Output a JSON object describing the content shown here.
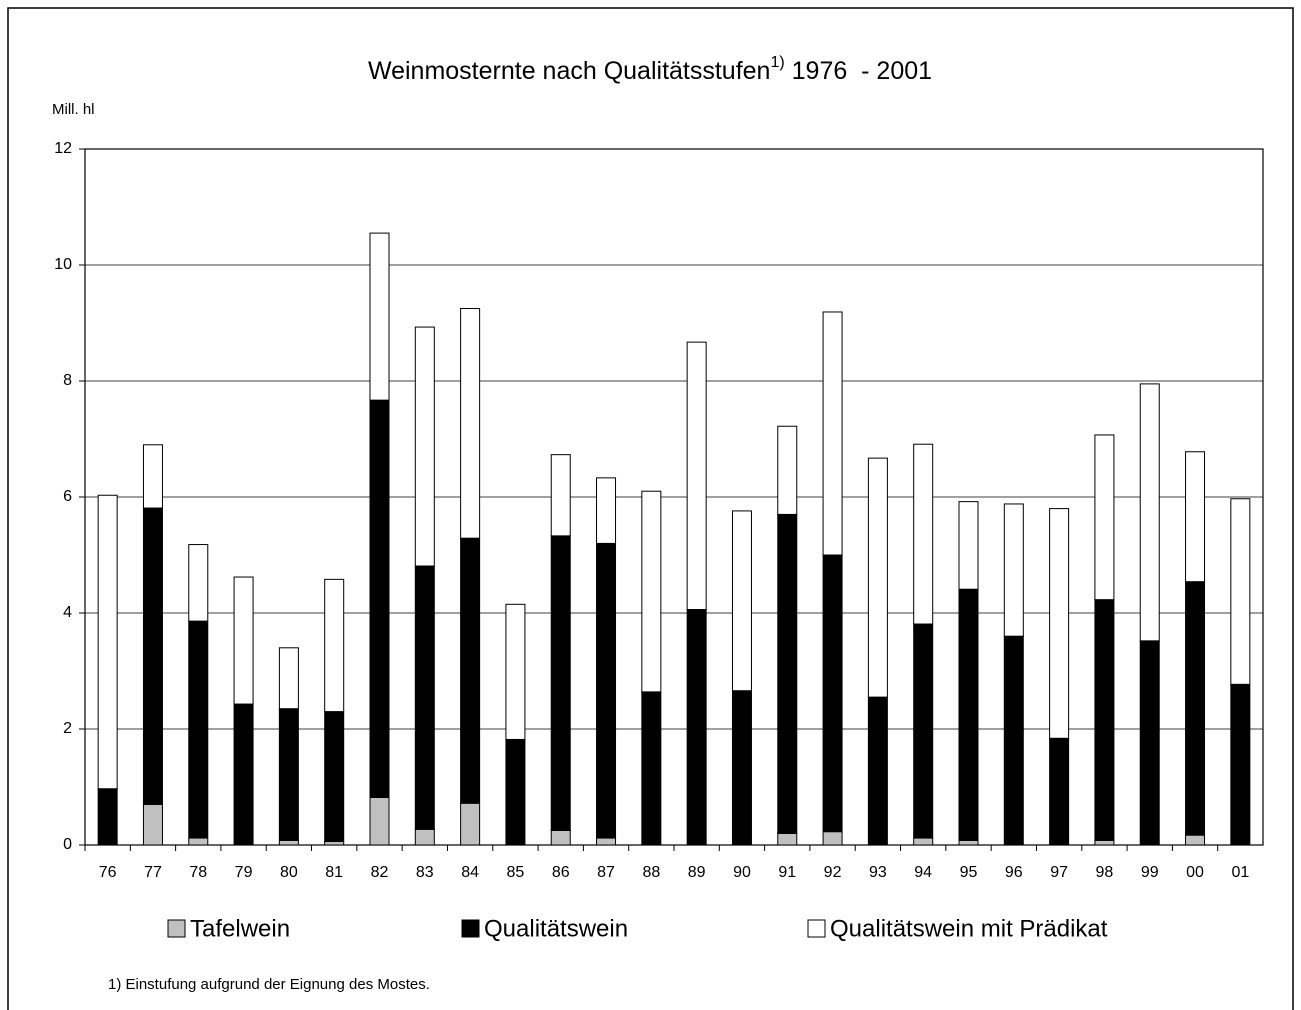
{
  "chart_data": {
    "type": "stacked_bar",
    "title": "Weinmosternte nach Qualitätsstufen",
    "title_footnote_mark": "1)",
    "title_years": "1976  - 2001",
    "y_axis_label": "Mill. hl",
    "footnote": "1) Einstufung aufgrund der Eignung des Mostes.",
    "categories": [
      "76",
      "77",
      "78",
      "79",
      "80",
      "81",
      "82",
      "83",
      "84",
      "85",
      "86",
      "87",
      "88",
      "89",
      "90",
      "91",
      "92",
      "93",
      "94",
      "95",
      "96",
      "97",
      "98",
      "99",
      "00",
      "01"
    ],
    "series": [
      {
        "name": "Tafelwein",
        "color": "#c0c0c0",
        "values": [
          0,
          0.7,
          0.12,
          0,
          0.08,
          0.06,
          0.82,
          0.27,
          0.72,
          0,
          0.25,
          0.12,
          0,
          0,
          0,
          0.2,
          0.23,
          0,
          0.12,
          0.08,
          0,
          0,
          0.08,
          0,
          0.17,
          0
        ]
      },
      {
        "name": "Qualitätswein",
        "color": "#000000",
        "values": [
          0.97,
          5.11,
          3.74,
          2.43,
          2.27,
          2.24,
          6.85,
          4.54,
          4.57,
          1.82,
          5.08,
          5.08,
          2.64,
          4.06,
          2.66,
          5.5,
          4.77,
          2.55,
          3.69,
          4.33,
          3.6,
          1.84,
          4.15,
          3.52,
          4.37,
          2.77
        ]
      },
      {
        "name": "Qualitätswein mit Prädikat",
        "color": "#ffffff",
        "values": [
          5.06,
          1.09,
          1.32,
          2.19,
          1.05,
          2.28,
          2.88,
          4.12,
          3.96,
          2.33,
          1.4,
          1.13,
          3.46,
          4.61,
          3.1,
          1.52,
          4.19,
          4.12,
          3.1,
          1.51,
          2.28,
          3.96,
          2.84,
          4.43,
          2.24,
          3.2
        ]
      }
    ],
    "ylim": [
      0,
      12
    ],
    "yticks": [
      0,
      2,
      4,
      6,
      8,
      10,
      12
    ],
    "grid": true
  }
}
